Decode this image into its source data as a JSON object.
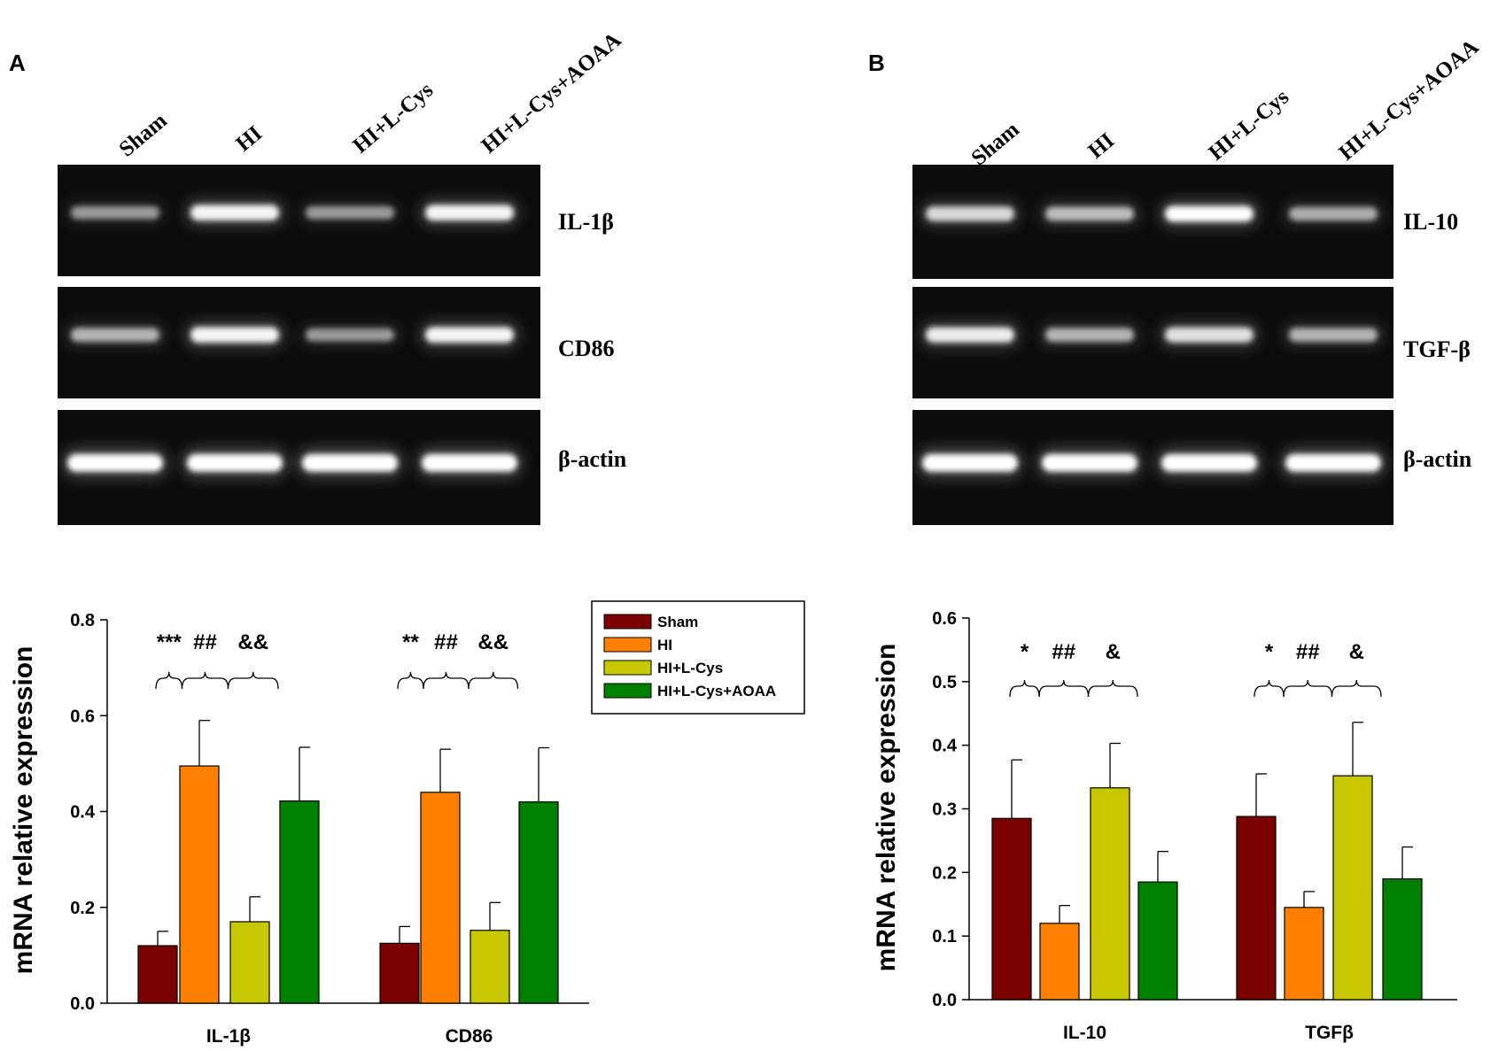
{
  "panels": [
    {
      "letter": "A",
      "lanes": [
        "Sham",
        "HI",
        "HI+L-Cys",
        "HI+L-Cys+AOAA"
      ],
      "gels": [
        {
          "label": "IL-1β",
          "intensities": [
            0.45,
            0.95,
            0.45,
            0.95
          ]
        },
        {
          "label": "CD86",
          "intensities": [
            0.6,
            0.95,
            0.45,
            0.95
          ]
        },
        {
          "label": "β-actin",
          "intensities": [
            1,
            1,
            1,
            1
          ]
        }
      ]
    },
    {
      "letter": "B",
      "lanes": [
        "Sham",
        "HI",
        "HI+L-Cys",
        "HI+L-Cys+AOAA"
      ],
      "gels": [
        {
          "label": "IL-10",
          "intensities": [
            0.8,
            0.65,
            1,
            0.55
          ]
        },
        {
          "label": "TGF-β",
          "intensities": [
            0.9,
            0.6,
            0.85,
            0.6
          ]
        },
        {
          "label": "β-actin",
          "intensities": [
            1,
            1,
            1,
            1
          ]
        }
      ]
    }
  ],
  "chart_data": [
    {
      "type": "bar",
      "ylabel": "mRNA relative expression",
      "ylim": [
        0,
        0.8
      ],
      "yticks": [
        "0.0",
        "0.2",
        "0.4",
        "0.6",
        "0.8"
      ],
      "categories": [
        "IL-1β",
        "CD86"
      ],
      "series": [
        {
          "name": "Sham",
          "color": "#7b0000",
          "values": [
            0.12,
            0.125
          ],
          "errors": [
            0.03,
            0.035
          ]
        },
        {
          "name": "HI",
          "color": "#ff8000",
          "values": [
            0.495,
            0.44
          ],
          "errors": [
            0.095,
            0.09
          ]
        },
        {
          "name": "HI+L-Cys",
          "color": "#c8c800",
          "values": [
            0.17,
            0.152
          ],
          "errors": [
            0.052,
            0.058
          ]
        },
        {
          "name": "HI+L-Cys+AOAA",
          "color": "#008000",
          "values": [
            0.422,
            0.42
          ],
          "errors": [
            0.112,
            0.113
          ]
        }
      ],
      "significance": [
        [
          "***",
          "##",
          "&&"
        ],
        [
          "**",
          "##",
          "&&"
        ]
      ],
      "legend_position": "top-right"
    },
    {
      "type": "bar",
      "ylabel": "mRNA relative expression",
      "ylim": [
        0,
        0.6
      ],
      "yticks": [
        "0.0",
        "0.1",
        "0.2",
        "0.3",
        "0.4",
        "0.5",
        "0.6"
      ],
      "categories": [
        "IL-10",
        "TGFβ"
      ],
      "series": [
        {
          "name": "Sham",
          "color": "#7b0000",
          "values": [
            0.285,
            0.288
          ],
          "errors": [
            0.092,
            0.067
          ]
        },
        {
          "name": "HI",
          "color": "#ff8000",
          "values": [
            0.12,
            0.145
          ],
          "errors": [
            0.028,
            0.025
          ]
        },
        {
          "name": "HI+L-Cys",
          "color": "#c8c800",
          "values": [
            0.333,
            0.352
          ],
          "errors": [
            0.07,
            0.084
          ]
        },
        {
          "name": "HI+L-Cys+AOAA",
          "color": "#008000",
          "values": [
            0.185,
            0.19
          ],
          "errors": [
            0.048,
            0.05
          ]
        }
      ],
      "significance": [
        [
          "*",
          "##",
          "&"
        ],
        [
          "*",
          "##",
          "&"
        ]
      ]
    }
  ]
}
